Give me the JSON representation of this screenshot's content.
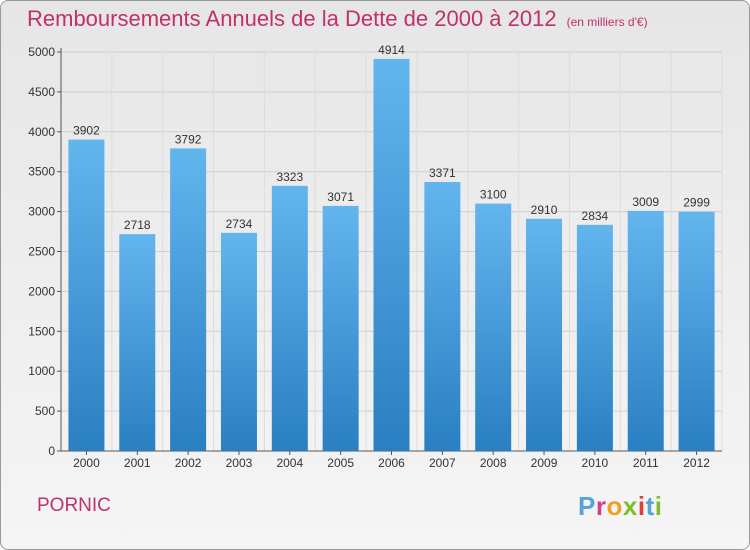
{
  "page": {
    "title": "Remboursements Annuels de la Dette de 2000 à 2012",
    "subtitle": "(en milliers d'€)",
    "city": "PORNIC",
    "logo": [
      "P",
      "r",
      "o",
      "x",
      "i",
      "t",
      "i"
    ]
  },
  "colors": {
    "title": "#c0306b",
    "bar_top": "#63b5ee",
    "bar_bottom": "#2a7fc2"
  },
  "chart_data": {
    "type": "bar",
    "categories": [
      "2000",
      "2001",
      "2002",
      "2003",
      "2004",
      "2005",
      "2006",
      "2007",
      "2008",
      "2009",
      "2010",
      "2011",
      "2012"
    ],
    "values": [
      3902,
      2718,
      3792,
      2734,
      3323,
      3071,
      4914,
      3371,
      3100,
      2910,
      2834,
      3009,
      2999
    ],
    "ylim": [
      0,
      5000
    ],
    "yticks": [
      0,
      500,
      1000,
      1500,
      2000,
      2500,
      3000,
      3500,
      4000,
      4500,
      5000
    ],
    "grid": true
  }
}
